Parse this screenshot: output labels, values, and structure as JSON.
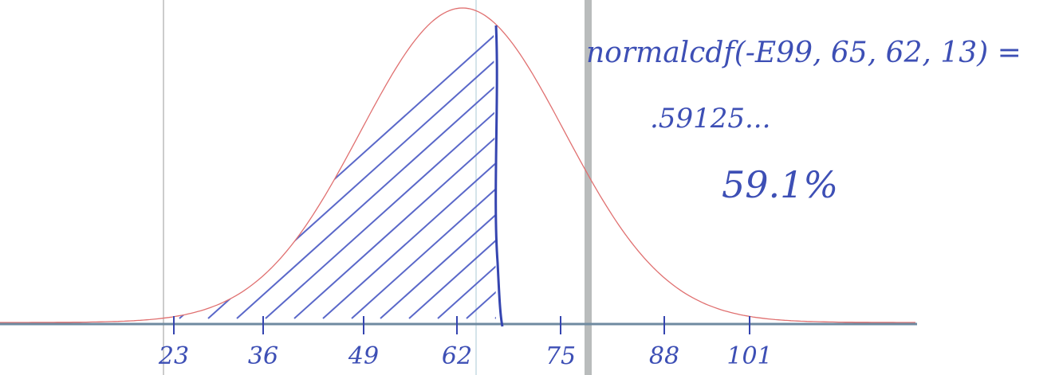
{
  "axis": {
    "tick_labels": [
      "23",
      "36",
      "49",
      "62",
      "75",
      "88",
      "101"
    ]
  },
  "annotation": {
    "lines": [
      "normalcdf(-E99, 65, 62, 13) =",
      ".59125...",
      "59.1%"
    ]
  }
}
